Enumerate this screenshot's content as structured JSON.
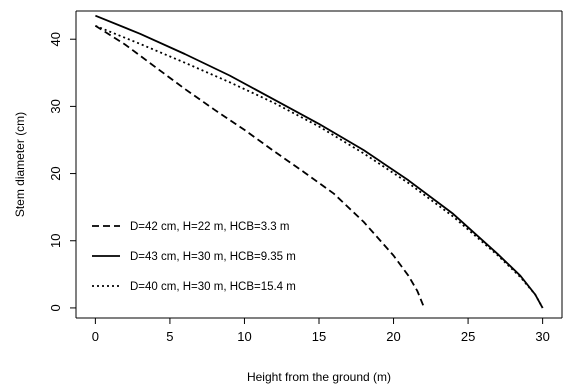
{
  "chart_data": {
    "type": "line",
    "title": "",
    "xlabel": "Height from the ground (m)",
    "ylabel": "Stem diameter (cm)",
    "xlim": [
      -1.3,
      31.3
    ],
    "ylim": [
      -1.5,
      44.2
    ],
    "xticks": [
      0,
      5,
      10,
      15,
      20,
      25,
      30
    ],
    "yticks": [
      0,
      10,
      20,
      30,
      40
    ],
    "grid": false,
    "legend_position": "bottom-left",
    "series": [
      {
        "name": "D=42 cm, H=22 m, HCB=3.3 m",
        "dash": "dashed",
        "color": "#000000",
        "x": [
          0,
          2,
          4,
          6,
          8,
          10,
          12,
          14,
          16,
          18,
          20,
          21,
          21.6,
          22
        ],
        "y": [
          42,
          39.2,
          35.9,
          32.6,
          29.5,
          26.5,
          23.3,
          20.2,
          17.0,
          12.8,
          7.8,
          4.8,
          2.5,
          0.3
        ]
      },
      {
        "name": "D=43 cm, H=30 m, HCB=9.35 m",
        "dash": "solid",
        "color": "#000000",
        "x": [
          0,
          3,
          6,
          9,
          12,
          15,
          18,
          21,
          24,
          27,
          28.5,
          29.5,
          30
        ],
        "y": [
          43.5,
          40.8,
          37.8,
          34.6,
          31.0,
          27.4,
          23.5,
          19.0,
          14.0,
          8.0,
          4.8,
          2.0,
          0
        ]
      },
      {
        "name": "D=40 cm, H=30 m, HCB=15.4 m",
        "dash": "dotted",
        "color": "#000000",
        "x": [
          0,
          3,
          6,
          9,
          12,
          15,
          18,
          21,
          24,
          27,
          28.5,
          29.5,
          30
        ],
        "y": [
          42,
          39.3,
          36.5,
          33.6,
          30.5,
          27.0,
          23.0,
          18.6,
          13.6,
          7.8,
          4.6,
          2.0,
          0
        ]
      }
    ]
  }
}
